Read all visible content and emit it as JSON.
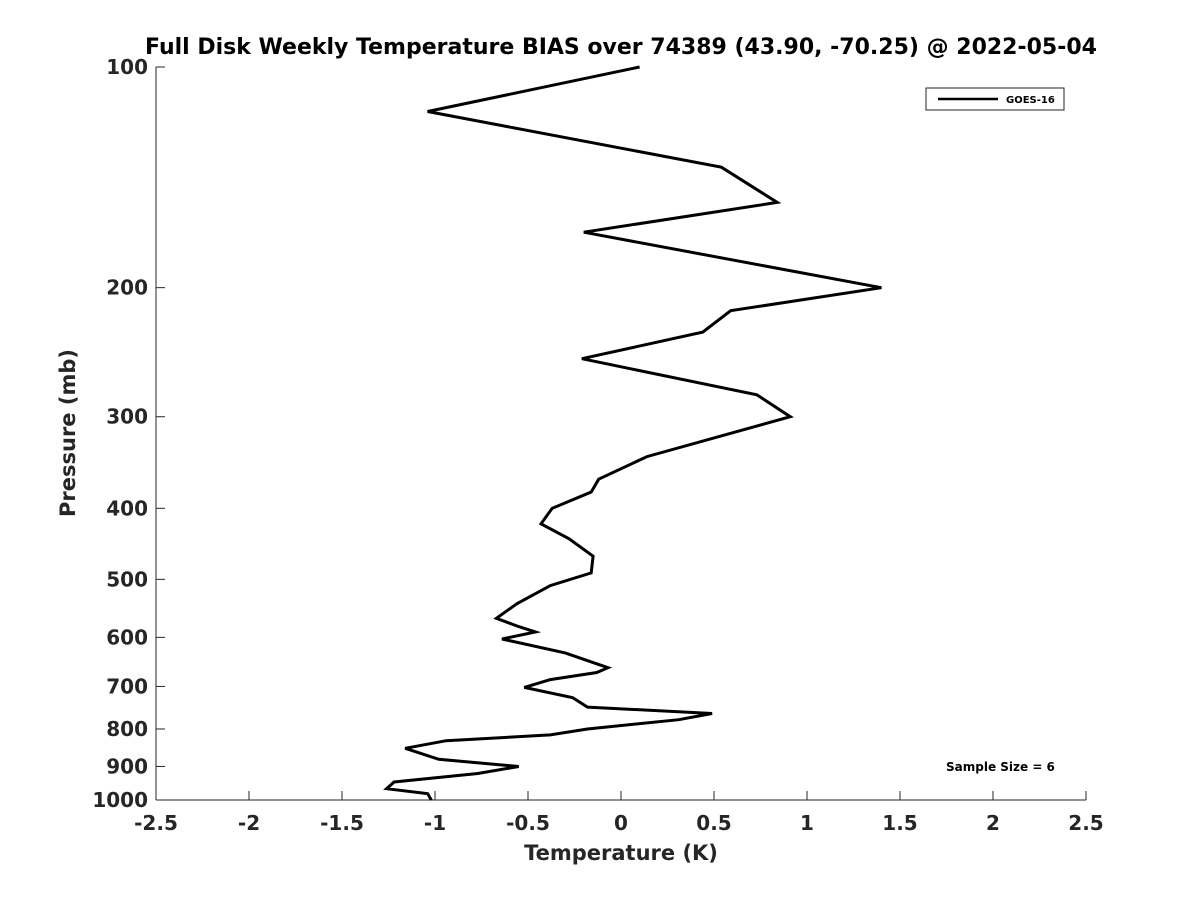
{
  "chart_data": {
    "type": "line",
    "title": "Full Disk Weekly Temperature BIAS over 74389 (43.90, -70.25) @ 2022-05-04",
    "xlabel": "Temperature (K)",
    "ylabel": "Pressure (mb)",
    "xlim": [
      -2.5,
      2.5
    ],
    "ylim": [
      100,
      1000
    ],
    "y_scale": "log",
    "y_reversed": true,
    "grid": false,
    "x_ticks": [
      -2.5,
      -2,
      -1.5,
      -1,
      -0.5,
      0,
      0.5,
      1,
      1.5,
      2,
      2.5
    ],
    "x_tick_labels": [
      "-2.5",
      "-2",
      "-1.5",
      "-1",
      "-0.5",
      "0",
      "0.5",
      "1",
      "1.5",
      "2",
      "2.5"
    ],
    "y_ticks": [
      100,
      200,
      300,
      400,
      500,
      600,
      700,
      800,
      900,
      1000
    ],
    "y_tick_labels": [
      "100",
      "200",
      "300",
      "400",
      "500",
      "600",
      "700",
      "800",
      "900",
      "1000"
    ],
    "legend": {
      "placement": "top-right",
      "entries": [
        "GOES-16"
      ]
    },
    "annotation": "Sample Size = 6",
    "series": [
      {
        "name": "GOES-16",
        "color": "#000000",
        "points": [
          [
            0.1,
            100
          ],
          [
            -1.04,
            115
          ],
          [
            0.54,
            137
          ],
          [
            0.84,
            153
          ],
          [
            -0.2,
            168
          ],
          [
            1.4,
            200
          ],
          [
            0.59,
            215
          ],
          [
            0.44,
            230
          ],
          [
            -0.21,
            250
          ],
          [
            0.73,
            280
          ],
          [
            0.91,
            300
          ],
          [
            0.14,
            340
          ],
          [
            -0.12,
            365
          ],
          [
            -0.16,
            380
          ],
          [
            -0.37,
            400
          ],
          [
            -0.43,
            420
          ],
          [
            -0.28,
            440
          ],
          [
            -0.15,
            465
          ],
          [
            -0.16,
            490
          ],
          [
            -0.38,
            510
          ],
          [
            -0.56,
            540
          ],
          [
            -0.67,
            565
          ],
          [
            -0.55,
            580
          ],
          [
            -0.46,
            590
          ],
          [
            -0.64,
            603
          ],
          [
            -0.3,
            630
          ],
          [
            -0.07,
            660
          ],
          [
            -0.13,
            670
          ],
          [
            -0.38,
            685
          ],
          [
            -0.52,
            702
          ],
          [
            -0.26,
            725
          ],
          [
            -0.18,
            747
          ],
          [
            0.49,
            762
          ],
          [
            0.31,
            777
          ],
          [
            -0.18,
            800
          ],
          [
            -0.38,
            815
          ],
          [
            -0.94,
            830
          ],
          [
            -1.16,
            850
          ],
          [
            -0.98,
            880
          ],
          [
            -0.55,
            900
          ],
          [
            -0.77,
            920
          ],
          [
            -1.22,
            945
          ],
          [
            -1.26,
            965
          ],
          [
            -1.04,
            980
          ],
          [
            -1.02,
            1000
          ]
        ]
      }
    ]
  }
}
